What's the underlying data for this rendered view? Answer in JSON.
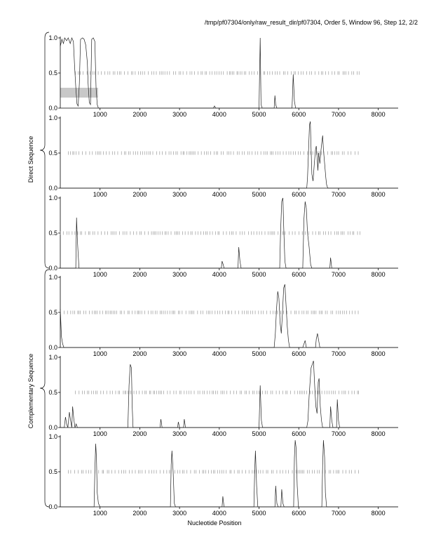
{
  "header": "/tmp/pf07304/only/raw_result_dir/pf07304, Order 5, Window 96, Step 12, 2/2",
  "xlabel": "Nucleotide Position",
  "group_labels": {
    "direct": "Direct Sequence",
    "complementary": "Complementary Sequence"
  },
  "chart_data": {
    "type": "line",
    "title": "/tmp/pf07304/only/raw_result_dir/pf07304, Order 5, Window 96, Step 12, 2/2",
    "xlabel": "Nucleotide Position",
    "xlim": [
      0,
      8500
    ],
    "ylim": [
      0,
      1
    ],
    "x_ticks": [
      1000,
      2000,
      3000,
      4000,
      5000,
      6000,
      7000,
      8000
    ],
    "y_ticks": [
      "0.0",
      "0.5",
      "1.0"
    ],
    "grid": false,
    "panels": [
      {
        "group": "Direct Sequence",
        "highlight": {
          "x": [
            0,
            950
          ],
          "y": [
            0.15,
            0.29
          ]
        },
        "marker_range": [
          380,
          7550
        ],
        "points": [
          [
            0,
            0.88
          ],
          [
            40,
            0.98
          ],
          [
            80,
            0.92
          ],
          [
            110,
            1.0
          ],
          [
            160,
            0.96
          ],
          [
            200,
            1.0
          ],
          [
            250,
            0.92
          ],
          [
            290,
            1.0
          ],
          [
            330,
            0.95
          ],
          [
            360,
            0.6
          ],
          [
            390,
            0.3
          ],
          [
            420,
            0.06
          ],
          [
            450,
            0.03
          ],
          [
            480,
            0.35
          ],
          [
            510,
            0.98
          ],
          [
            560,
            1.0
          ],
          [
            600,
            0.98
          ],
          [
            640,
            0.9
          ],
          [
            680,
            0.65
          ],
          [
            700,
            0.35
          ],
          [
            730,
            0.08
          ],
          [
            760,
            0.05
          ],
          [
            790,
            0.98
          ],
          [
            830,
            1.0
          ],
          [
            870,
            0.95
          ],
          [
            900,
            0.3
          ],
          [
            930,
            0.05
          ],
          [
            960,
            0.0
          ],
          [
            3850,
            0.0
          ],
          [
            3880,
            0.03
          ],
          [
            3910,
            0.0
          ],
          [
            5000,
            0.0
          ],
          [
            5030,
            1.0
          ],
          [
            5050,
            0.05
          ],
          [
            5080,
            0.0
          ],
          [
            5380,
            0.0
          ],
          [
            5400,
            0.18
          ],
          [
            5420,
            0.05
          ],
          [
            5450,
            0.0
          ],
          [
            5830,
            0.0
          ],
          [
            5860,
            0.48
          ],
          [
            5890,
            0.1
          ],
          [
            5920,
            0.0
          ],
          [
            8500,
            0.0
          ]
        ]
      },
      {
        "group": "Direct Sequence",
        "marker_range": [
          200,
          7550
        ],
        "points": [
          [
            0,
            0.0
          ],
          [
            6200,
            0.0
          ],
          [
            6220,
            0.15
          ],
          [
            6250,
            0.6
          ],
          [
            6270,
            0.9
          ],
          [
            6290,
            0.95
          ],
          [
            6310,
            0.55
          ],
          [
            6330,
            0.2
          ],
          [
            6360,
            0.1
          ],
          [
            6390,
            0.35
          ],
          [
            6420,
            0.55
          ],
          [
            6440,
            0.6
          ],
          [
            6460,
            0.45
          ],
          [
            6480,
            0.25
          ],
          [
            6500,
            0.5
          ],
          [
            6530,
            0.35
          ],
          [
            6560,
            0.55
          ],
          [
            6580,
            0.65
          ],
          [
            6600,
            0.75
          ],
          [
            6620,
            0.55
          ],
          [
            6650,
            0.35
          ],
          [
            6680,
            0.15
          ],
          [
            6700,
            0.05
          ],
          [
            6730,
            0.0
          ],
          [
            8500,
            0.0
          ]
        ]
      },
      {
        "group": "Direct Sequence",
        "marker_range": [
          0,
          7550
        ],
        "points": [
          [
            0,
            0.0
          ],
          [
            390,
            0.0
          ],
          [
            410,
            0.72
          ],
          [
            430,
            0.4
          ],
          [
            450,
            0.2
          ],
          [
            470,
            0.0
          ],
          [
            4050,
            0.0
          ],
          [
            4070,
            0.1
          ],
          [
            4100,
            0.05
          ],
          [
            4120,
            0.0
          ],
          [
            4470,
            0.0
          ],
          [
            4490,
            0.3
          ],
          [
            4520,
            0.1
          ],
          [
            4550,
            0.0
          ],
          [
            5520,
            0.0
          ],
          [
            5540,
            0.5
          ],
          [
            5570,
            0.95
          ],
          [
            5600,
            1.0
          ],
          [
            5620,
            0.6
          ],
          [
            5650,
            0.1
          ],
          [
            5680,
            0.0
          ],
          [
            6100,
            0.0
          ],
          [
            6130,
            0.7
          ],
          [
            6160,
            0.95
          ],
          [
            6190,
            0.85
          ],
          [
            6220,
            0.5
          ],
          [
            6260,
            0.3
          ],
          [
            6300,
            0.05
          ],
          [
            6330,
            0.0
          ],
          [
            6780,
            0.0
          ],
          [
            6800,
            0.15
          ],
          [
            6830,
            0.0
          ],
          [
            8500,
            0.0
          ]
        ]
      },
      {
        "group": "Complementary Sequence",
        "marker_range": [
          0,
          7550
        ],
        "points": [
          [
            0,
            0.55
          ],
          [
            30,
            0.15
          ],
          [
            60,
            0.05
          ],
          [
            90,
            0.0
          ],
          [
            5380,
            0.0
          ],
          [
            5410,
            0.2
          ],
          [
            5440,
            0.55
          ],
          [
            5470,
            0.8
          ],
          [
            5500,
            0.7
          ],
          [
            5530,
            0.35
          ],
          [
            5560,
            0.2
          ],
          [
            5590,
            0.5
          ],
          [
            5620,
            0.85
          ],
          [
            5650,
            0.9
          ],
          [
            5680,
            0.6
          ],
          [
            5710,
            0.3
          ],
          [
            5740,
            0.1
          ],
          [
            5770,
            0.0
          ],
          [
            6100,
            0.0
          ],
          [
            6130,
            0.05
          ],
          [
            6160,
            0.1
          ],
          [
            6190,
            0.0
          ],
          [
            6420,
            0.0
          ],
          [
            6440,
            0.12
          ],
          [
            6470,
            0.2
          ],
          [
            6500,
            0.1
          ],
          [
            6530,
            0.0
          ],
          [
            8500,
            0.0
          ]
        ]
      },
      {
        "group": "Complementary Sequence",
        "marker_range": [
          380,
          7550
        ],
        "points": [
          [
            0,
            0.0
          ],
          [
            100,
            0.0
          ],
          [
            130,
            0.15
          ],
          [
            160,
            0.05
          ],
          [
            190,
            0.0
          ],
          [
            230,
            0.22
          ],
          [
            260,
            0.1
          ],
          [
            290,
            0.0
          ],
          [
            310,
            0.3
          ],
          [
            340,
            0.12
          ],
          [
            370,
            0.0
          ],
          [
            400,
            0.05
          ],
          [
            430,
            0.0
          ],
          [
            1700,
            0.0
          ],
          [
            1730,
            0.6
          ],
          [
            1760,
            0.9
          ],
          [
            1790,
            0.85
          ],
          [
            1810,
            0.3
          ],
          [
            1830,
            0.0
          ],
          [
            2510,
            0.0
          ],
          [
            2530,
            0.12
          ],
          [
            2560,
            0.0
          ],
          [
            2950,
            0.0
          ],
          [
            2970,
            0.08
          ],
          [
            3000,
            0.0
          ],
          [
            3100,
            0.0
          ],
          [
            3120,
            0.12
          ],
          [
            3150,
            0.0
          ],
          [
            5000,
            0.0
          ],
          [
            5030,
            0.6
          ],
          [
            5060,
            0.1
          ],
          [
            5090,
            0.0
          ],
          [
            6200,
            0.0
          ],
          [
            6230,
            0.1
          ],
          [
            6260,
            0.45
          ],
          [
            6290,
            0.7
          ],
          [
            6310,
            0.85
          ],
          [
            6340,
            0.9
          ],
          [
            6370,
            0.95
          ],
          [
            6400,
            0.6
          ],
          [
            6430,
            0.3
          ],
          [
            6460,
            0.2
          ],
          [
            6490,
            0.65
          ],
          [
            6510,
            0.7
          ],
          [
            6540,
            0.3
          ],
          [
            6570,
            0.1
          ],
          [
            6600,
            0.0
          ],
          [
            6780,
            0.0
          ],
          [
            6800,
            0.3
          ],
          [
            6830,
            0.1
          ],
          [
            6860,
            0.0
          ],
          [
            6950,
            0.0
          ],
          [
            6970,
            0.4
          ],
          [
            7000,
            0.1
          ],
          [
            7030,
            0.0
          ],
          [
            8500,
            0.0
          ]
        ]
      },
      {
        "group": "Complementary Sequence",
        "marker_range": [
          200,
          7550
        ],
        "points": [
          [
            0,
            0.0
          ],
          [
            850,
            0.0
          ],
          [
            870,
            0.5
          ],
          [
            890,
            0.9
          ],
          [
            910,
            0.7
          ],
          [
            930,
            0.2
          ],
          [
            960,
            0.05
          ],
          [
            1000,
            0.0
          ],
          [
            2770,
            0.0
          ],
          [
            2790,
            0.6
          ],
          [
            2810,
            0.8
          ],
          [
            2840,
            0.5
          ],
          [
            2870,
            0.05
          ],
          [
            2900,
            0.0
          ],
          [
            4070,
            0.0
          ],
          [
            4090,
            0.15
          ],
          [
            4120,
            0.0
          ],
          [
            4870,
            0.0
          ],
          [
            4890,
            0.5
          ],
          [
            4910,
            0.8
          ],
          [
            4940,
            0.3
          ],
          [
            4970,
            0.0
          ],
          [
            5400,
            0.0
          ],
          [
            5420,
            0.3
          ],
          [
            5450,
            0.05
          ],
          [
            5480,
            0.0
          ],
          [
            5550,
            0.0
          ],
          [
            5570,
            0.25
          ],
          [
            5600,
            0.05
          ],
          [
            5630,
            0.0
          ],
          [
            5870,
            0.0
          ],
          [
            5890,
            0.7
          ],
          [
            5910,
            0.95
          ],
          [
            5930,
            0.85
          ],
          [
            5960,
            0.3
          ],
          [
            5990,
            0.0
          ],
          [
            6580,
            0.0
          ],
          [
            6600,
            0.6
          ],
          [
            6620,
            0.95
          ],
          [
            6650,
            0.7
          ],
          [
            6670,
            0.2
          ],
          [
            6700,
            0.0
          ],
          [
            8500,
            0.0
          ]
        ]
      }
    ]
  }
}
